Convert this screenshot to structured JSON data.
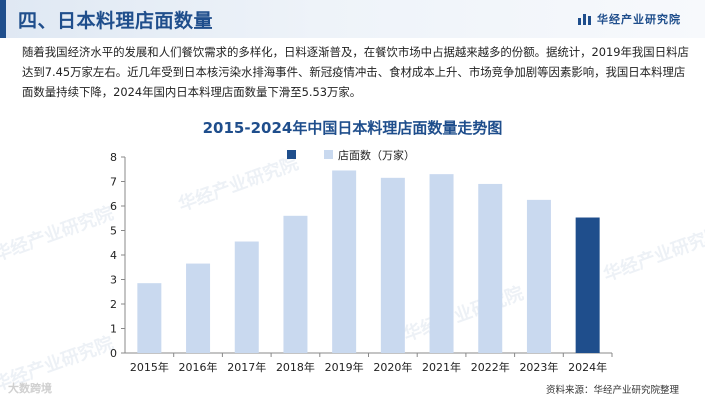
{
  "header": {
    "title": "四、日本料理店面数量",
    "brand": "华经产业研究院"
  },
  "intro_text": "随着我国经济水平的发展和人们餐饮需求的多样化，日料逐渐普及，在餐饮市场中占据越来越多的份额。据统计，2019年我国日料店达到7.45万家左右。近几年受到日本核污染水排海事件、新冠疫情冲击、食材成本上升、市场竞争加剧等因素影响，我国日本料理店面数量持续下降，2024年国内日本料理店面数量下滑至5.53万家。",
  "chart_data": {
    "type": "bar",
    "title": "2015-2024年中国日本料理店面数量走势图",
    "categories": [
      "2015年",
      "2016年",
      "2017年",
      "2018年",
      "2019年",
      "2020年",
      "2021年",
      "2022年",
      "2023年",
      "2024年"
    ],
    "series": [
      {
        "name": "店面数（万家）",
        "values": [
          2.85,
          3.65,
          4.55,
          5.6,
          7.45,
          7.15,
          7.3,
          6.9,
          6.25,
          5.53
        ]
      }
    ],
    "highlight_index": 9,
    "ylim": [
      0,
      8
    ],
    "yticks": [
      "0",
      "1",
      "2",
      "3",
      "4",
      "5",
      "6",
      "7",
      "8"
    ],
    "grid": false,
    "legend": "top-center",
    "colors": {
      "bar": "#c9d9ef",
      "highlight": "#1f4e8c",
      "title": "#1f4e8c"
    }
  },
  "watermarks": [
    "华经产业研究院",
    "华经产业研究院",
    "华经产业研究院",
    "华经产业研究院",
    "华经产业研究院"
  ],
  "source": "资料来源：华经产业研究院整理",
  "logo": "大数跨境"
}
